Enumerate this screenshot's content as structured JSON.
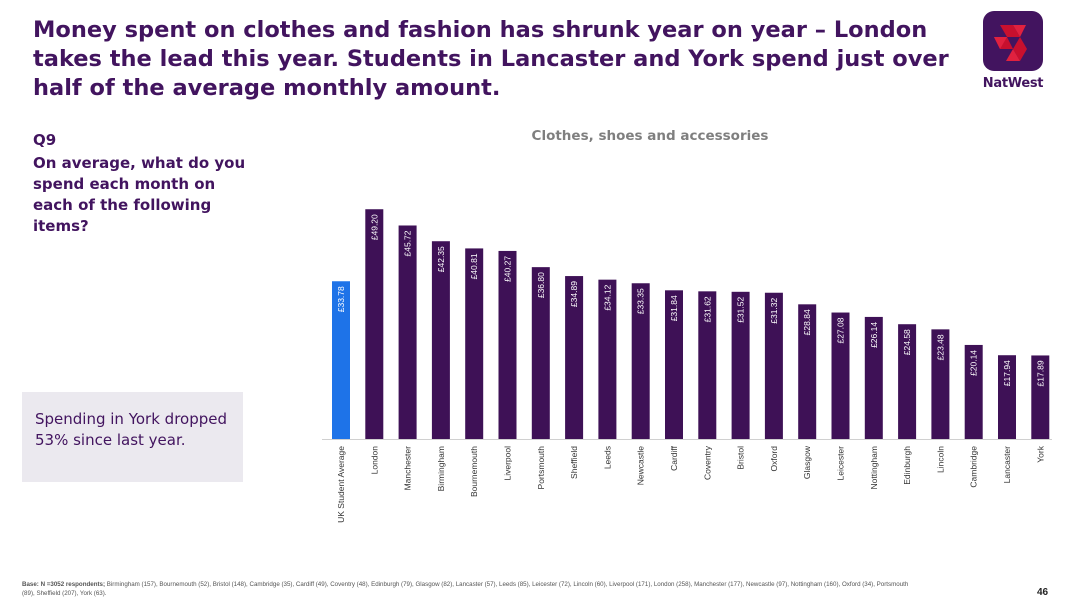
{
  "header": {
    "title": "Money spent on clothes and fashion has shrunk year on year – London takes the lead this year. Students in Lancaster and York spend just over half of the average monthly amount."
  },
  "brand": {
    "name": "NatWest",
    "color": "#42145f",
    "accent": "#c8102e"
  },
  "question": {
    "code": "Q9",
    "text": "On average, what do you spend each month on each of the following items?"
  },
  "callout": {
    "text": "Spending in York dropped 53% since last year."
  },
  "chart_data": {
    "type": "bar",
    "title": "Clothes, shoes and accessories",
    "xlabel": "",
    "ylabel": "",
    "ylim": [
      0,
      50
    ],
    "grid": false,
    "categories": [
      "UK Student Average",
      "London",
      "Manchester",
      "Birmingham",
      "Bournemouth",
      "Liverpool",
      "Portsmouth",
      "Sheffield",
      "Leeds",
      "Newcastle",
      "Cardiff",
      "Coventry",
      "Bristol",
      "Oxford",
      "Glasgow",
      "Leicester",
      "Nottingham",
      "Edinburgh",
      "Lincoln",
      "Cambridge",
      "Lancaster",
      "York"
    ],
    "values": [
      33.78,
      49.2,
      45.72,
      42.35,
      40.81,
      40.27,
      36.8,
      34.89,
      34.12,
      33.35,
      31.84,
      31.62,
      31.52,
      31.32,
      28.84,
      27.08,
      26.14,
      24.58,
      23.48,
      20.14,
      17.94,
      17.89
    ],
    "data_labels": [
      "£33.78",
      "£49.20",
      "£45.72",
      "£42.35",
      "£40.81",
      "£40.27",
      "£36.80",
      "£34.89",
      "£34.12",
      "£33.35",
      "£31.84",
      "£31.62",
      "£31.52",
      "£31.32",
      "£28.84",
      "£27.08",
      "£26.14",
      "£24.58",
      "£23.48",
      "£20.14",
      "£17.94",
      "£17.89"
    ],
    "colors": {
      "average": "#1e73e8",
      "city": "#3e1156"
    }
  },
  "footnote": {
    "label": "Base: N =3052 respondents;",
    "text": " Birmingham (157),  Bournemouth (52), Bristol (148), Cambridge (35), Cardiff (49), Coventry (48),  Edinburgh (79), Glasgow (82), Lancaster (57), Leeds (85), Leicester (72), Lincoln (60), Liverpool (171), London (258), Manchester (177), Newcastle (97), Nottingham (160), Oxford (34), Portsmouth (89), Sheffield (207), York (63)."
  },
  "page_number": "46"
}
